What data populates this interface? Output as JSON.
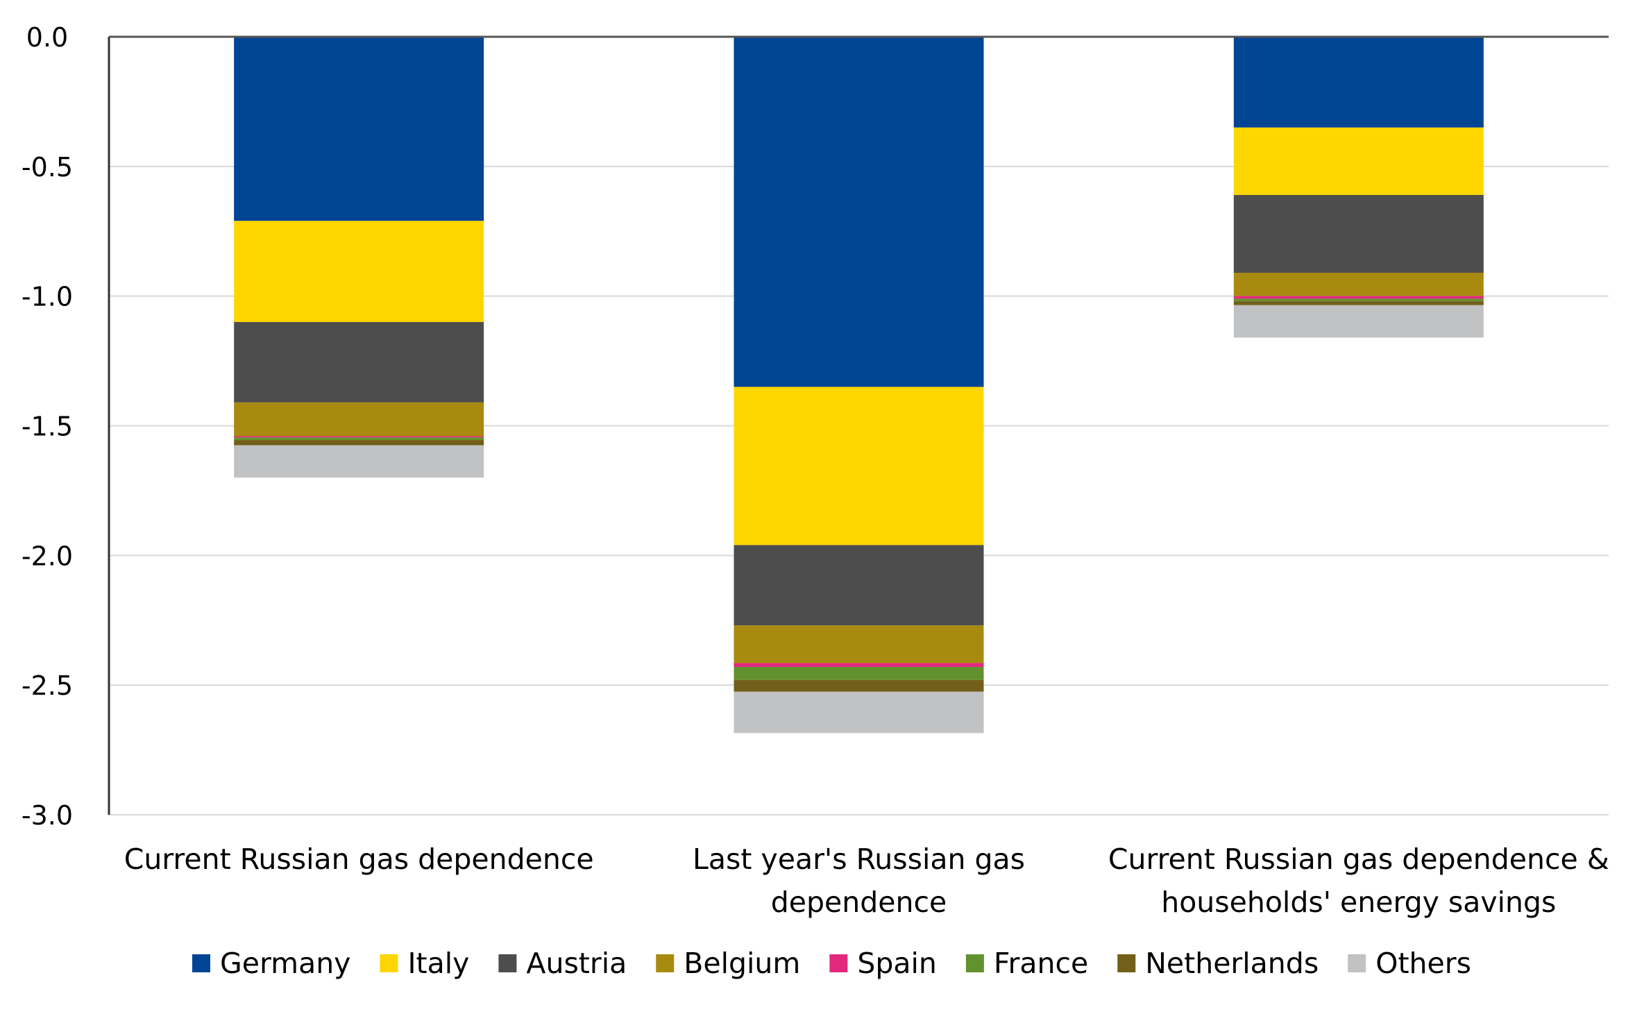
{
  "chart_data": {
    "type": "bar",
    "stacked": true,
    "title": "",
    "xlabel": "",
    "ylabel": "",
    "ylim": [
      -3.0,
      0.0
    ],
    "yticks": [
      "0.0",
      "-0.5",
      "-1.0",
      "-1.5",
      "-2.0",
      "-2.5",
      "-3.0"
    ],
    "ytick_values": [
      0,
      -0.5,
      -1.0,
      -1.5,
      -2.0,
      -2.5,
      -3.0
    ],
    "grid": true,
    "legend_position": "bottom",
    "categories": [
      [
        "Current Russian gas dependence"
      ],
      [
        "Last year's Russian gas",
        "dependence"
      ],
      [
        "Current Russian gas dependence &",
        "households' energy savings"
      ]
    ],
    "series": [
      {
        "name": "Germany",
        "color": "#004494",
        "values": [
          -0.71,
          -1.35,
          -0.35
        ]
      },
      {
        "name": "Italy",
        "color": "#FFD600",
        "values": [
          -0.39,
          -0.61,
          -0.26
        ]
      },
      {
        "name": "Austria",
        "color": "#4D4D4D",
        "values": [
          -0.31,
          -0.31,
          -0.3
        ]
      },
      {
        "name": "Belgium",
        "color": "#A88A11",
        "values": [
          -0.13,
          -0.145,
          -0.09
        ]
      },
      {
        "name": "Spain",
        "color": "#E2287F",
        "values": [
          -0.005,
          -0.015,
          -0.01
        ]
      },
      {
        "name": "France",
        "color": "#62922F",
        "values": [
          -0.01,
          -0.05,
          -0.01
        ]
      },
      {
        "name": "Netherlands",
        "color": "#725F19",
        "values": [
          -0.02,
          -0.045,
          -0.015
        ]
      },
      {
        "name": "Others",
        "color": "#C1C2C3",
        "values": [
          -0.125,
          -0.16,
          -0.125
        ]
      }
    ]
  }
}
